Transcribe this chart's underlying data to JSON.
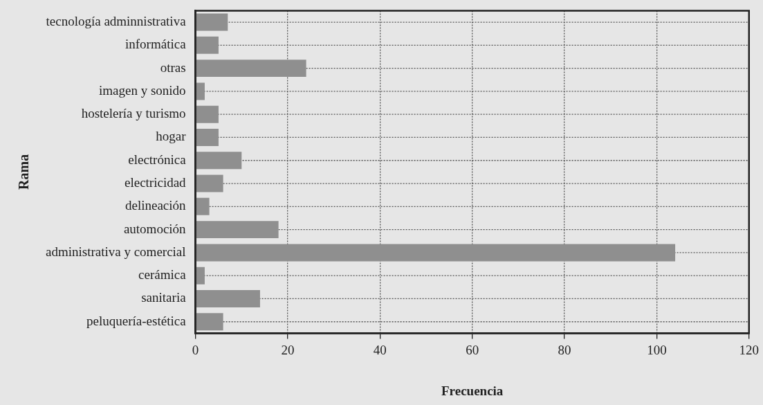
{
  "chart_data": {
    "type": "bar",
    "orientation": "horizontal",
    "xlabel": "Frecuencia",
    "ylabel": "Rama",
    "categories": [
      "tecnología adminnistrativa",
      "informática",
      "otras",
      "imagen y sonido",
      "hostelería y turismo",
      "hogar",
      "electrónica",
      "electricidad",
      "delineación",
      "automoción",
      "administrativa y comercial",
      "cerámica",
      "sanitaria",
      "peluquería-estética"
    ],
    "values": [
      7,
      5,
      24,
      2,
      5,
      5,
      10,
      6,
      3,
      18,
      104,
      2,
      14,
      6
    ],
    "color": "#8f8f8f",
    "xlim": [
      0,
      120
    ],
    "xticks": [
      0,
      20,
      40,
      60,
      80,
      100,
      120
    ],
    "grid": true
  }
}
